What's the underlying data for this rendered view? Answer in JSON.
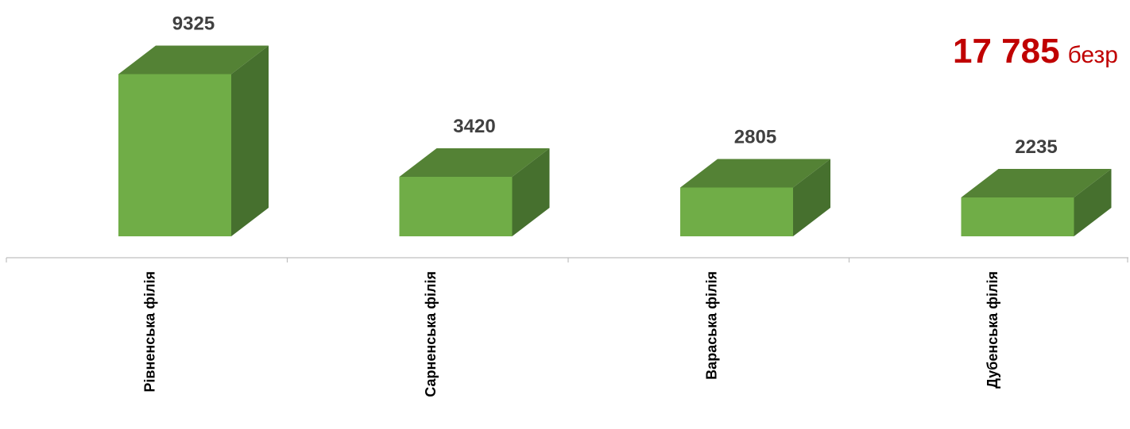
{
  "chart_data": {
    "type": "bar",
    "style": "3d-column",
    "categories": [
      "Рівненська філія",
      "Сарненська філія",
      "Вараська філія",
      "Дубенська філія"
    ],
    "values": [
      9325,
      3420,
      2805,
      2235
    ],
    "title": "",
    "xlabel": "",
    "ylabel": "",
    "ylim": [
      0,
      10000
    ],
    "grid": false,
    "legend": "none",
    "colors": {
      "front": "#70ad47",
      "top": "#548235",
      "side": "#46702e",
      "axis": "#bfbfbf",
      "labels": "#404040"
    }
  },
  "summary": {
    "total_value": "17 785",
    "total_unit": "безр"
  }
}
